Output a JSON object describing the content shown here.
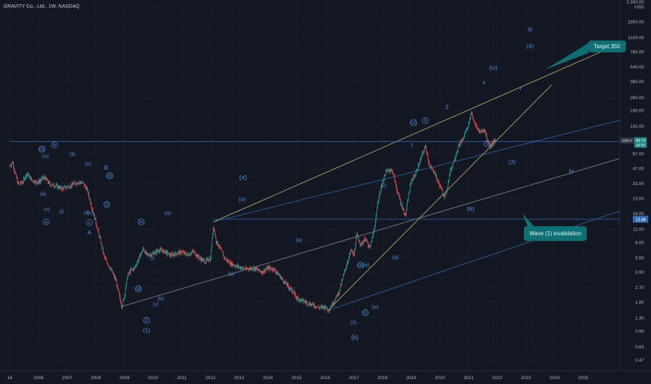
{
  "header": {
    "symbol_line": "GRAVITY Co., Ltd., 1W, NASDAQ"
  },
  "price_axis": {
    "currency": "USD",
    "ticks": [
      "2,300.00",
      "1600.00",
      "1100.00",
      "780.00",
      "540.00",
      "380.00",
      "260.00",
      "190.00",
      "130.00",
      "67.00",
      "47.00",
      "33.00",
      "23.00",
      "16.00",
      "11.00",
      "8.00",
      "5.50",
      "3.90",
      "2.70",
      "1.90",
      "1.30",
      "0.95",
      "0.65",
      "0.47"
    ]
  },
  "time_axis": {
    "ticks": [
      "14",
      "2006",
      "2007",
      "2008",
      "2009",
      "2010",
      "2011",
      "2012",
      "2013",
      "2014",
      "2015",
      "2016",
      "2017",
      "2018",
      "2019",
      "2020",
      "2021",
      "2022",
      "2023",
      "2024",
      "2025"
    ]
  },
  "price_tags": {
    "symbol": "GRVY",
    "last_price": "89.79",
    "countdown": "4d 6h",
    "invalidation_level": "13.88"
  },
  "callouts": {
    "target": "Target 350",
    "invalidation": "Wave (1) invalidation"
  },
  "wave_labels": [
    "(ii)",
    "b",
    "(iv)",
    "(ii)",
    "(i)",
    "(iii)",
    "(iv)",
    "B",
    "(ii)",
    "(v)",
    "(i)",
    "(ii)",
    "(v)",
    "a",
    "c",
    "A",
    "(i)",
    "(iv)",
    "(iii)",
    "(i)",
    "(ii)",
    "(iii)",
    "(v)",
    "C",
    "(1)",
    "(v)",
    "(iv)",
    "(b)",
    "(a)",
    "(c)",
    "(2)",
    "(ii)",
    "(i)",
    "(ii)",
    "(iii)",
    "(iv)",
    "(v)",
    "(iii)",
    "1",
    "(v)",
    "2",
    "3",
    "(iii)",
    "(iv)",
    "4",
    "5",
    "(3)",
    "(4)",
    "iii",
    "iv",
    "v"
  ],
  "chart_data": {
    "type": "candlestick",
    "title": "GRAVITY Co., Ltd., 1W, NASDAQ",
    "y_scale": "log",
    "ylim": [
      0.37,
      2600
    ],
    "xlim": [
      2005.0,
      2026.3
    ],
    "price_series": [
      [
        2005.0,
        50
      ],
      [
        2005.1,
        55
      ],
      [
        2005.2,
        40
      ],
      [
        2005.3,
        32
      ],
      [
        2005.45,
        34
      ],
      [
        2005.6,
        42
      ],
      [
        2005.75,
        36
      ],
      [
        2005.9,
        34
      ],
      [
        2006.0,
        34
      ],
      [
        2006.2,
        38
      ],
      [
        2006.4,
        32
      ],
      [
        2006.6,
        31
      ],
      [
        2006.8,
        29
      ],
      [
        2007.0,
        30
      ],
      [
        2007.2,
        32
      ],
      [
        2007.4,
        34
      ],
      [
        2007.55,
        33
      ],
      [
        2007.7,
        28
      ],
      [
        2007.85,
        19
      ],
      [
        2008.0,
        13
      ],
      [
        2008.15,
        8.5
      ],
      [
        2008.3,
        5.5
      ],
      [
        2008.5,
        4.3
      ],
      [
        2008.7,
        3.2
      ],
      [
        2008.85,
        2.0
      ],
      [
        2008.9,
        1.7
      ],
      [
        2009.0,
        2.2
      ],
      [
        2009.1,
        3.5
      ],
      [
        2009.2,
        4.0
      ],
      [
        2009.35,
        4.3
      ],
      [
        2009.5,
        5.4
      ],
      [
        2009.65,
        6.8
      ],
      [
        2009.8,
        5.8
      ],
      [
        2010.0,
        6.1
      ],
      [
        2010.2,
        6.6
      ],
      [
        2010.4,
        6.4
      ],
      [
        2010.6,
        5.8
      ],
      [
        2010.8,
        6.1
      ],
      [
        2011.0,
        6.3
      ],
      [
        2011.2,
        5.9
      ],
      [
        2011.4,
        6.4
      ],
      [
        2011.6,
        5.5
      ],
      [
        2011.8,
        5.0
      ],
      [
        2012.0,
        5.4
      ],
      [
        2012.1,
        12.0
      ],
      [
        2012.2,
        8.2
      ],
      [
        2012.3,
        7.2
      ],
      [
        2012.5,
        5.4
      ],
      [
        2012.7,
        4.8
      ],
      [
        2012.9,
        4.5
      ],
      [
        2013.2,
        4.2
      ],
      [
        2013.5,
        4.3
      ],
      [
        2013.8,
        3.9
      ],
      [
        2014.0,
        4.3
      ],
      [
        2014.2,
        4.2
      ],
      [
        2014.4,
        3.6
      ],
      [
        2014.6,
        3.0
      ],
      [
        2014.8,
        2.6
      ],
      [
        2015.0,
        2.1
      ],
      [
        2015.3,
        1.9
      ],
      [
        2015.6,
        1.75
      ],
      [
        2015.8,
        1.65
      ],
      [
        2016.0,
        1.7
      ],
      [
        2016.1,
        1.55
      ],
      [
        2016.3,
        1.9
      ],
      [
        2016.5,
        2.5
      ],
      [
        2016.7,
        4.2
      ],
      [
        2016.9,
        6.6
      ],
      [
        2017.0,
        5.8
      ],
      [
        2017.1,
        9.5
      ],
      [
        2017.25,
        7.5
      ],
      [
        2017.4,
        8.8
      ],
      [
        2017.55,
        6.8
      ],
      [
        2017.7,
        10.5
      ],
      [
        2017.85,
        22
      ],
      [
        2018.0,
        34
      ],
      [
        2018.1,
        42
      ],
      [
        2018.2,
        46
      ],
      [
        2018.35,
        44
      ],
      [
        2018.5,
        28
      ],
      [
        2018.65,
        20
      ],
      [
        2018.8,
        15
      ],
      [
        2018.9,
        24
      ],
      [
        2019.0,
        35
      ],
      [
        2019.15,
        41
      ],
      [
        2019.3,
        55
      ],
      [
        2019.4,
        68
      ],
      [
        2019.5,
        80
      ],
      [
        2019.65,
        48
      ],
      [
        2019.8,
        44
      ],
      [
        2019.9,
        36
      ],
      [
        2020.0,
        31
      ],
      [
        2020.1,
        26
      ],
      [
        2020.2,
        24
      ],
      [
        2020.35,
        43
      ],
      [
        2020.5,
        58
      ],
      [
        2020.65,
        80
      ],
      [
        2020.8,
        95
      ],
      [
        2020.9,
        115
      ],
      [
        2021.0,
        135
      ],
      [
        2021.1,
        185
      ],
      [
        2021.15,
        160
      ],
      [
        2021.25,
        130
      ],
      [
        2021.4,
        112
      ],
      [
        2021.55,
        120
      ],
      [
        2021.65,
        95
      ],
      [
        2021.75,
        80
      ],
      [
        2021.85,
        88
      ],
      [
        2021.95,
        90
      ]
    ],
    "lines": [
      {
        "name": "channel-blue-1",
        "color": "#2f6bb0",
        "points": [
          [
            2012.1,
            13
          ],
          [
            2026.3,
            150
          ]
        ]
      },
      {
        "name": "channel-blue-2",
        "color": "#2f6bb0",
        "points": [
          [
            2016.1,
            1.55
          ],
          [
            2026.3,
            17
          ]
        ]
      },
      {
        "name": "channel-gray",
        "color": "#8a8f9c",
        "points": [
          [
            2008.9,
            1.7
          ],
          [
            2026.3,
            60
          ]
        ]
      },
      {
        "name": "yellow-upper",
        "color": "#c9c06c",
        "points": [
          [
            2012.1,
            13
          ],
          [
            2026.3,
            950
          ]
        ]
      },
      {
        "name": "yellow-lower",
        "color": "#c9c06c",
        "points": [
          [
            2016.1,
            1.55
          ],
          [
            2023.9,
            350
          ]
        ]
      },
      {
        "name": "invalidation-line",
        "color": "#2f6bb0",
        "points": [
          [
            2012.1,
            13.88
          ],
          [
            2026.3,
            13.88
          ]
        ]
      },
      {
        "name": "price-line",
        "color": "#2f6bb0",
        "points": [
          [
            2005.0,
            89.79
          ],
          [
            2026.3,
            89.79
          ]
        ]
      }
    ]
  }
}
